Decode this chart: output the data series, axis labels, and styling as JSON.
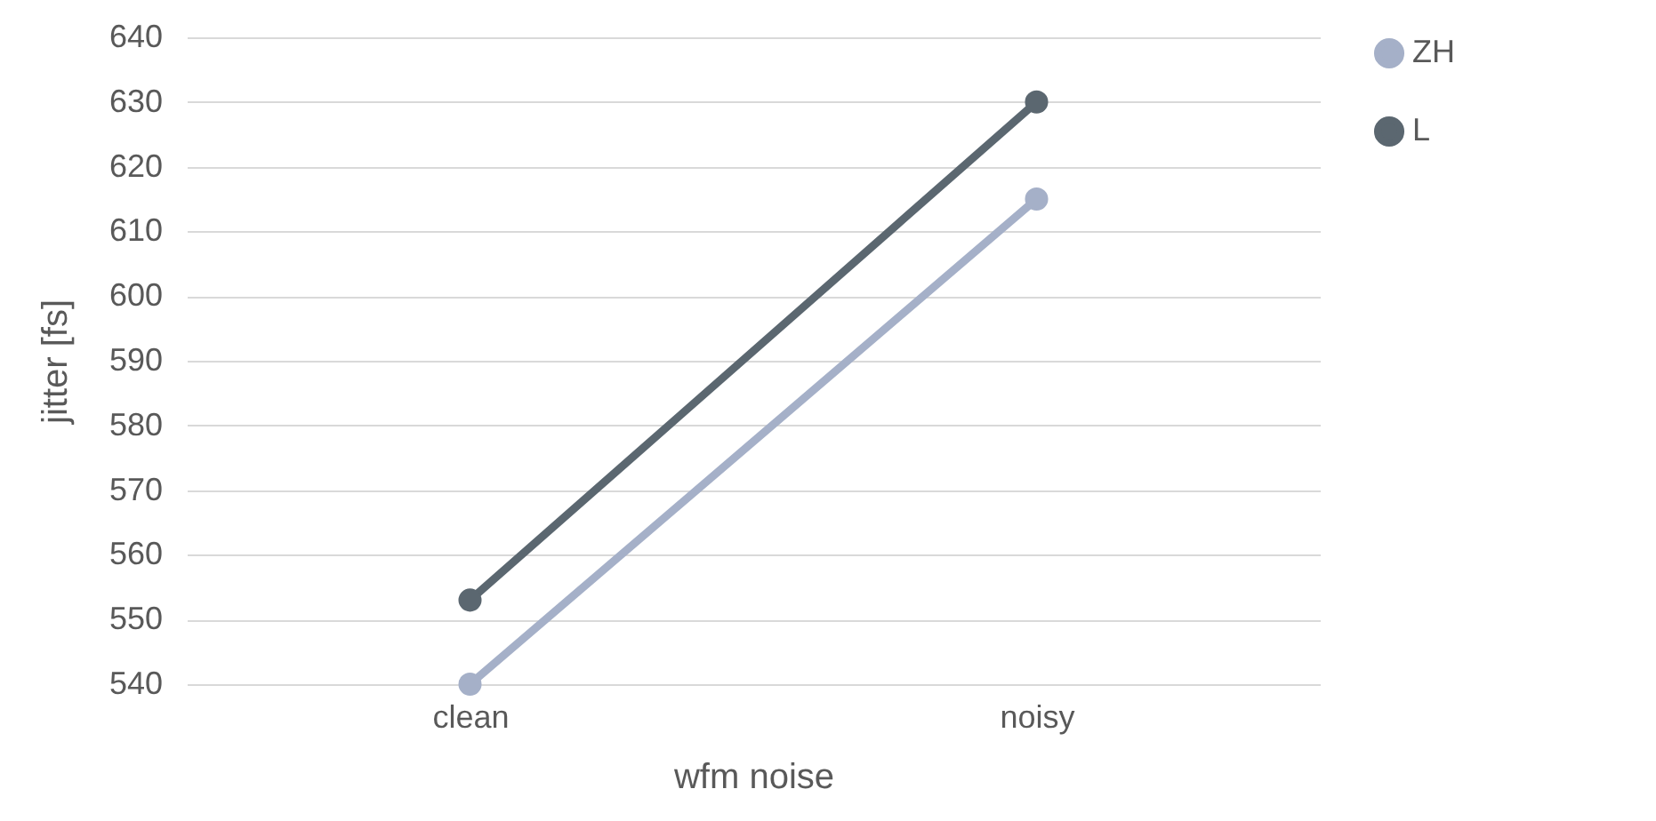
{
  "chart_data": {
    "type": "line",
    "xlabel": "wfm noise",
    "ylabel": "jitter [fs]",
    "categories": [
      "clean",
      "noisy"
    ],
    "series": [
      {
        "name": "ZH",
        "color": "#a5b0c8",
        "values": [
          540,
          615
        ]
      },
      {
        "name": "L",
        "color": "#5b6770",
        "values": [
          553,
          630
        ]
      }
    ],
    "ylim": [
      540,
      640
    ],
    "yticks": [
      540,
      550,
      560,
      570,
      580,
      590,
      600,
      610,
      620,
      630,
      640
    ],
    "grid": "y",
    "legend": "right",
    "marker": "circle",
    "line_style": "solid"
  }
}
